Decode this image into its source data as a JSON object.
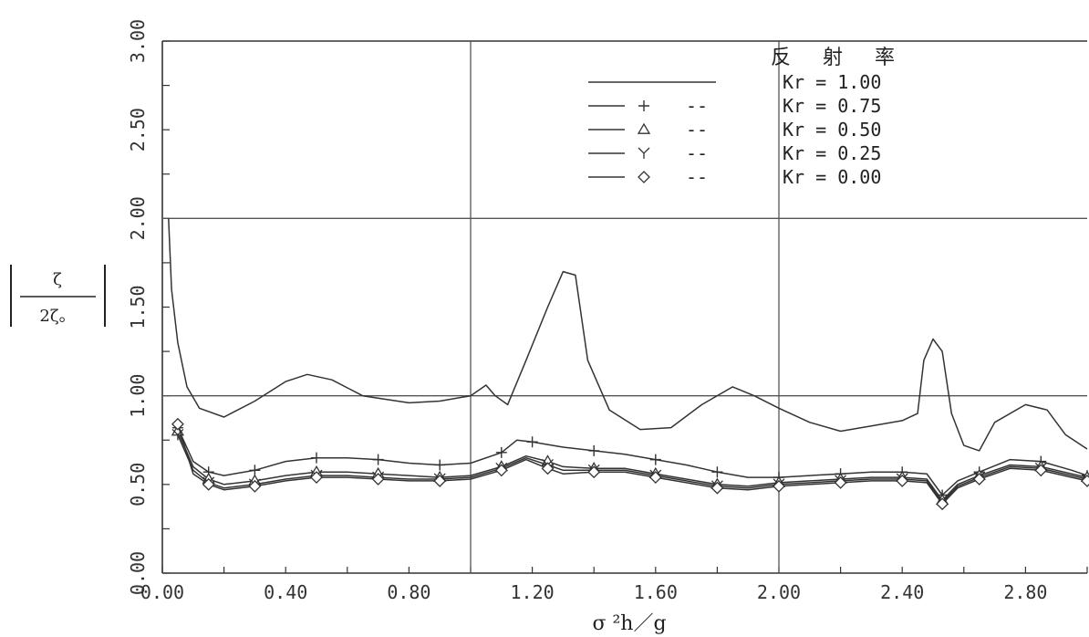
{
  "chart_data": {
    "type": "line",
    "xlabel": "σ ²h／g",
    "ylabel_numerator": "ζ",
    "ylabel_denominator": "2ζ。",
    "xlim": [
      0.0,
      3.0
    ],
    "ylim": [
      0.0,
      3.0
    ],
    "x_ticks": [
      "0.00",
      "0.40",
      "0.80",
      "1.20",
      "1.60",
      "2.00",
      "2.40",
      "2.80"
    ],
    "y_ticks": [
      "0.00",
      "0.50",
      "1.00",
      "1.50",
      "2.00",
      "2.50",
      "3.00"
    ],
    "grid": "major lines at x=1.0, 2.0 and y=1.0, 2.0",
    "legend_placement": "top-right",
    "legend_title": "反 射 率",
    "series": [
      {
        "name": "Kr = 1.00",
        "marker": "none",
        "legend_marker_text": "",
        "legend_dash_text": "",
        "points": [
          [
            0.02,
            2.0
          ],
          [
            0.03,
            1.6
          ],
          [
            0.05,
            1.3
          ],
          [
            0.08,
            1.05
          ],
          [
            0.12,
            0.93
          ],
          [
            0.2,
            0.88
          ],
          [
            0.3,
            0.97
          ],
          [
            0.4,
            1.08
          ],
          [
            0.47,
            1.12
          ],
          [
            0.55,
            1.09
          ],
          [
            0.65,
            1.0
          ],
          [
            0.8,
            0.96
          ],
          [
            0.9,
            0.97
          ],
          [
            1.0,
            1.0
          ],
          [
            1.05,
            1.06
          ],
          [
            1.08,
            1.0
          ],
          [
            1.12,
            0.95
          ],
          [
            1.18,
            1.2
          ],
          [
            1.25,
            1.5
          ],
          [
            1.3,
            1.7
          ],
          [
            1.34,
            1.68
          ],
          [
            1.38,
            1.2
          ],
          [
            1.45,
            0.92
          ],
          [
            1.55,
            0.81
          ],
          [
            1.65,
            0.82
          ],
          [
            1.75,
            0.95
          ],
          [
            1.85,
            1.05
          ],
          [
            1.92,
            1.0
          ],
          [
            2.0,
            0.93
          ],
          [
            2.1,
            0.85
          ],
          [
            2.2,
            0.8
          ],
          [
            2.3,
            0.83
          ],
          [
            2.4,
            0.86
          ],
          [
            2.45,
            0.9
          ],
          [
            2.47,
            1.2
          ],
          [
            2.5,
            1.32
          ],
          [
            2.53,
            1.25
          ],
          [
            2.56,
            0.9
          ],
          [
            2.6,
            0.72
          ],
          [
            2.65,
            0.69
          ],
          [
            2.7,
            0.85
          ],
          [
            2.8,
            0.95
          ],
          [
            2.87,
            0.92
          ],
          [
            2.93,
            0.78
          ],
          [
            3.0,
            0.7
          ]
        ]
      },
      {
        "name": "Kr = 0.75",
        "marker": "+",
        "legend_marker_text": "+",
        "legend_dash_text": "--",
        "points": [
          [
            0.05,
            0.82
          ],
          [
            0.1,
            0.63
          ],
          [
            0.15,
            0.57
          ],
          [
            0.2,
            0.55
          ],
          [
            0.3,
            0.58
          ],
          [
            0.4,
            0.63
          ],
          [
            0.5,
            0.65
          ],
          [
            0.6,
            0.65
          ],
          [
            0.7,
            0.64
          ],
          [
            0.8,
            0.62
          ],
          [
            0.9,
            0.61
          ],
          [
            1.0,
            0.62
          ],
          [
            1.1,
            0.68
          ],
          [
            1.15,
            0.75
          ],
          [
            1.2,
            0.74
          ],
          [
            1.3,
            0.71
          ],
          [
            1.4,
            0.69
          ],
          [
            1.5,
            0.67
          ],
          [
            1.6,
            0.64
          ],
          [
            1.7,
            0.61
          ],
          [
            1.8,
            0.57
          ],
          [
            1.9,
            0.54
          ],
          [
            2.0,
            0.54
          ],
          [
            2.1,
            0.55
          ],
          [
            2.2,
            0.56
          ],
          [
            2.3,
            0.57
          ],
          [
            2.4,
            0.57
          ],
          [
            2.48,
            0.56
          ],
          [
            2.53,
            0.44
          ],
          [
            2.58,
            0.52
          ],
          [
            2.65,
            0.57
          ],
          [
            2.75,
            0.64
          ],
          [
            2.85,
            0.63
          ],
          [
            2.95,
            0.58
          ],
          [
            3.0,
            0.55
          ]
        ]
      },
      {
        "name": "Kr = 0.50",
        "marker": "triangle",
        "legend_marker_text": "△",
        "legend_dash_text": "--",
        "points": [
          [
            0.05,
            0.8
          ],
          [
            0.1,
            0.6
          ],
          [
            0.15,
            0.53
          ],
          [
            0.2,
            0.5
          ],
          [
            0.3,
            0.52
          ],
          [
            0.4,
            0.55
          ],
          [
            0.5,
            0.57
          ],
          [
            0.6,
            0.57
          ],
          [
            0.7,
            0.56
          ],
          [
            0.8,
            0.55
          ],
          [
            0.9,
            0.54
          ],
          [
            1.0,
            0.55
          ],
          [
            1.1,
            0.6
          ],
          [
            1.18,
            0.66
          ],
          [
            1.25,
            0.63
          ],
          [
            1.3,
            0.6
          ],
          [
            1.4,
            0.59
          ],
          [
            1.5,
            0.59
          ],
          [
            1.6,
            0.56
          ],
          [
            1.7,
            0.53
          ],
          [
            1.8,
            0.5
          ],
          [
            1.9,
            0.49
          ],
          [
            2.0,
            0.51
          ],
          [
            2.1,
            0.52
          ],
          [
            2.2,
            0.53
          ],
          [
            2.3,
            0.54
          ],
          [
            2.4,
            0.54
          ],
          [
            2.48,
            0.53
          ],
          [
            2.53,
            0.41
          ],
          [
            2.58,
            0.5
          ],
          [
            2.65,
            0.55
          ],
          [
            2.75,
            0.61
          ],
          [
            2.85,
            0.6
          ],
          [
            2.95,
            0.56
          ],
          [
            3.0,
            0.54
          ]
        ]
      },
      {
        "name": "Kr = 0.25",
        "marker": "Y",
        "legend_marker_text": "Y",
        "legend_dash_text": "--",
        "points": [
          [
            0.05,
            0.78
          ],
          [
            0.1,
            0.58
          ],
          [
            0.15,
            0.51
          ],
          [
            0.2,
            0.48
          ],
          [
            0.3,
            0.5
          ],
          [
            0.4,
            0.53
          ],
          [
            0.5,
            0.55
          ],
          [
            0.6,
            0.55
          ],
          [
            0.7,
            0.54
          ],
          [
            0.8,
            0.53
          ],
          [
            0.9,
            0.53
          ],
          [
            1.0,
            0.54
          ],
          [
            1.1,
            0.59
          ],
          [
            1.18,
            0.65
          ],
          [
            1.25,
            0.61
          ],
          [
            1.3,
            0.58
          ],
          [
            1.4,
            0.58
          ],
          [
            1.5,
            0.58
          ],
          [
            1.6,
            0.55
          ],
          [
            1.7,
            0.52
          ],
          [
            1.8,
            0.49
          ],
          [
            1.9,
            0.48
          ],
          [
            2.0,
            0.5
          ],
          [
            2.1,
            0.51
          ],
          [
            2.2,
            0.52
          ],
          [
            2.3,
            0.53
          ],
          [
            2.4,
            0.53
          ],
          [
            2.48,
            0.52
          ],
          [
            2.53,
            0.4
          ],
          [
            2.58,
            0.49
          ],
          [
            2.65,
            0.54
          ],
          [
            2.75,
            0.6
          ],
          [
            2.85,
            0.59
          ],
          [
            2.95,
            0.55
          ],
          [
            3.0,
            0.53
          ]
        ]
      },
      {
        "name": "Kr = 0.00",
        "marker": "diamond",
        "legend_marker_text": "◇",
        "legend_dash_text": "--",
        "points": [
          [
            0.05,
            0.84
          ],
          [
            0.1,
            0.56
          ],
          [
            0.15,
            0.5
          ],
          [
            0.2,
            0.47
          ],
          [
            0.3,
            0.49
          ],
          [
            0.4,
            0.52
          ],
          [
            0.5,
            0.54
          ],
          [
            0.6,
            0.54
          ],
          [
            0.7,
            0.53
          ],
          [
            0.8,
            0.52
          ],
          [
            0.9,
            0.52
          ],
          [
            1.0,
            0.53
          ],
          [
            1.1,
            0.58
          ],
          [
            1.18,
            0.64
          ],
          [
            1.25,
            0.59
          ],
          [
            1.3,
            0.56
          ],
          [
            1.4,
            0.57
          ],
          [
            1.5,
            0.57
          ],
          [
            1.6,
            0.54
          ],
          [
            1.7,
            0.51
          ],
          [
            1.8,
            0.48
          ],
          [
            1.9,
            0.47
          ],
          [
            2.0,
            0.49
          ],
          [
            2.1,
            0.5
          ],
          [
            2.2,
            0.51
          ],
          [
            2.3,
            0.52
          ],
          [
            2.4,
            0.52
          ],
          [
            2.48,
            0.51
          ],
          [
            2.53,
            0.39
          ],
          [
            2.58,
            0.48
          ],
          [
            2.65,
            0.53
          ],
          [
            2.75,
            0.59
          ],
          [
            2.85,
            0.58
          ],
          [
            2.95,
            0.54
          ],
          [
            3.0,
            0.52
          ]
        ]
      }
    ]
  }
}
